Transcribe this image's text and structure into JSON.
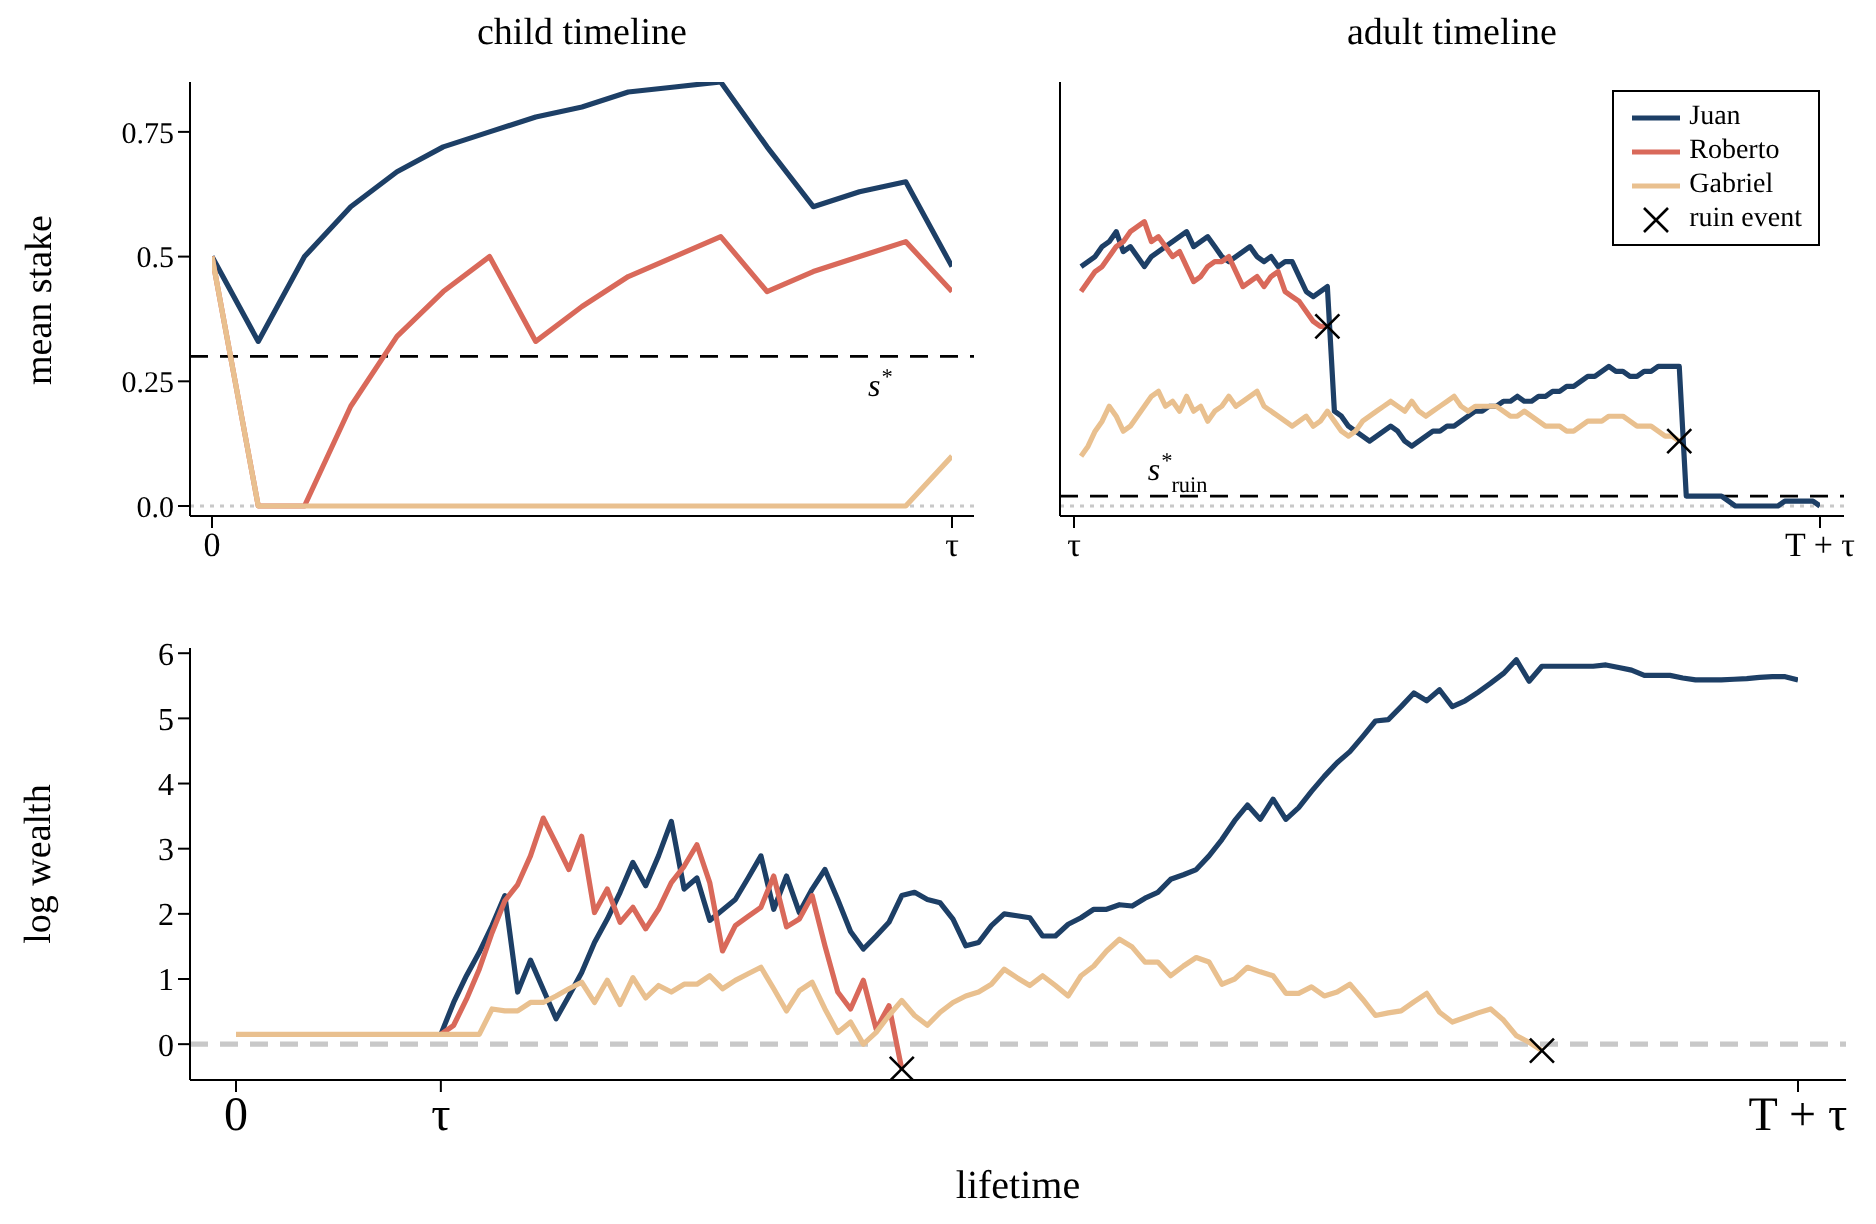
{
  "chart_data": [
    {
      "type": "line",
      "title": "child timeline",
      "ylabel": "mean stake",
      "categories": [
        "0",
        null,
        null,
        null,
        null,
        null,
        null,
        null,
        null,
        null,
        null,
        null,
        null,
        null,
        null,
        null,
        "τ"
      ],
      "series": [
        {
          "color": "#1d3f66",
          "values": [
            0.5,
            0.33,
            0.5,
            0.6,
            0.67,
            0.72,
            0.75,
            0.78,
            0.8,
            0.83,
            0.84,
            0.85,
            0.72,
            0.6,
            0.63,
            0.65,
            0.48
          ]
        },
        {
          "color": "#d9695a",
          "values": [
            0.5,
            0,
            0,
            0.2,
            0.34,
            0.43,
            0.5,
            0.33,
            0.4,
            0.46,
            0.5,
            0.54,
            0.43,
            0.47,
            0.5,
            0.53,
            0.43
          ]
        },
        {
          "color": "#e9c08f",
          "values": [
            0.5,
            0,
            0,
            0,
            0,
            0,
            0,
            0,
            0,
            0,
            0,
            0,
            0,
            0,
            0,
            0,
            0.1
          ]
        }
      ],
      "ylim": [
        -0.02,
        0.85
      ],
      "yticks": [
        {
          "value": 0,
          "label": "0.0"
        },
        0.25,
        0.5,
        0.75
      ],
      "ref_lines": [
        {
          "axis": "y",
          "value": 0.3,
          "label": "s$^{*}$",
          "color": "#000000",
          "line_style": "dashed"
        },
        {
          "axis": "y",
          "value": 0,
          "color": "#c8c8c8",
          "line_style": "dotted"
        }
      ]
    },
    {
      "type": "line",
      "title": "adult timeline",
      "legend": "top right",
      "tick_labels": "x",
      "categories": [
        "τ",
        null,
        null,
        null,
        null,
        null,
        null,
        null,
        null,
        null,
        null,
        null,
        null,
        null,
        null,
        null,
        null,
        null,
        null,
        null,
        null,
        null,
        null,
        null,
        null,
        null,
        null,
        null,
        null,
        null,
        null,
        null,
        null,
        null,
        null,
        null,
        null,
        null,
        null,
        null,
        null,
        null,
        null,
        null,
        null,
        null,
        null,
        null,
        null,
        null,
        null,
        null,
        null,
        null,
        null,
        null,
        null,
        null,
        null,
        null,
        null,
        null,
        null,
        null,
        null,
        null,
        null,
        null,
        null,
        null,
        null,
        null,
        null,
        null,
        null,
        null,
        null,
        null,
        null,
        null,
        null,
        null,
        null,
        null,
        null,
        null,
        null,
        null,
        null,
        null,
        null,
        null,
        null,
        null,
        null,
        null,
        null,
        null,
        null,
        null,
        null,
        null,
        null,
        null,
        null,
        null,
        "T + τ"
      ],
      "series": [
        {
          "name": "Juan",
          "color": "#1d3f66",
          "values": [
            null,
            0.48,
            0.49,
            0.5,
            0.52,
            0.53,
            0.55,
            0.51,
            0.52,
            0.5,
            0.48,
            0.5,
            0.51,
            0.52,
            0.53,
            0.54,
            0.55,
            0.52,
            0.53,
            0.54,
            0.52,
            0.5,
            0.49,
            0.5,
            0.51,
            0.52,
            0.5,
            0.49,
            0.5,
            0.48,
            0.49,
            0.49,
            0.46,
            0.43,
            0.42,
            0.43,
            0.44,
            0.19,
            0.18,
            0.16,
            0.15,
            0.14,
            0.13,
            0.14,
            0.15,
            0.16,
            0.15,
            0.13,
            0.12,
            0.13,
            0.14,
            0.15,
            0.15,
            0.16,
            0.16,
            0.17,
            0.18,
            0.19,
            0.19,
            0.2,
            0.2,
            0.21,
            0.21,
            0.22,
            0.21,
            0.21,
            0.22,
            0.22,
            0.23,
            0.23,
            0.24,
            0.24,
            0.25,
            0.26,
            0.26,
            0.27,
            0.28,
            0.27,
            0.27,
            0.26,
            0.26,
            0.27,
            0.27,
            0.28,
            0.28,
            0.28,
            0.28,
            0.02,
            0.02,
            0.02,
            0.02,
            0.02,
            0.02,
            0.01,
            0,
            0,
            0,
            0,
            0,
            0,
            0,
            0.01,
            0.01,
            0.01,
            0.01,
            0.01,
            0
          ]
        },
        {
          "name": "Roberto",
          "color": "#d9695a",
          "values": [
            null,
            0.43,
            0.45,
            0.47,
            0.48,
            0.5,
            0.52,
            0.53,
            0.55,
            0.56,
            0.57,
            0.53,
            0.54,
            0.52,
            0.5,
            0.51,
            0.48,
            0.45,
            0.46,
            0.48,
            0.49,
            0.49,
            0.5,
            0.47,
            0.44,
            0.45,
            0.46,
            0.44,
            0.46,
            0.47,
            0.43,
            0.42,
            0.41,
            0.39,
            0.37,
            0.36,
            0.36,
            null,
            null,
            null,
            null,
            null,
            null,
            null,
            null,
            null,
            null,
            null,
            null,
            null,
            null,
            null,
            null,
            null,
            null,
            null,
            null,
            null,
            null,
            null,
            null,
            null,
            null,
            null,
            null,
            null,
            null,
            null,
            null,
            null,
            null,
            null,
            null,
            null,
            null,
            null,
            null,
            null,
            null,
            null,
            null,
            null,
            null,
            null,
            null,
            null,
            null,
            null,
            null,
            null,
            null,
            null,
            null,
            null,
            null,
            null,
            null,
            null,
            null,
            null,
            null,
            null,
            null,
            null,
            null,
            null,
            null
          ]
        },
        {
          "name": "Gabriel",
          "color": "#e9c08f",
          "values": [
            null,
            0.1,
            0.12,
            0.15,
            0.17,
            0.2,
            0.18,
            0.15,
            0.16,
            0.18,
            0.2,
            0.22,
            0.23,
            0.2,
            0.21,
            0.19,
            0.22,
            0.19,
            0.2,
            0.17,
            0.19,
            0.2,
            0.22,
            0.2,
            0.21,
            0.22,
            0.23,
            0.2,
            0.19,
            0.18,
            0.17,
            0.16,
            0.17,
            0.18,
            0.16,
            0.17,
            0.19,
            0.17,
            0.15,
            0.14,
            0.15,
            0.17,
            0.18,
            0.19,
            0.2,
            0.21,
            0.2,
            0.19,
            0.21,
            0.19,
            0.18,
            0.19,
            0.2,
            0.21,
            0.22,
            0.2,
            0.19,
            0.2,
            0.2,
            0.2,
            0.2,
            0.19,
            0.18,
            0.18,
            0.19,
            0.18,
            0.17,
            0.16,
            0.16,
            0.16,
            0.15,
            0.15,
            0.16,
            0.17,
            0.17,
            0.17,
            0.18,
            0.18,
            0.18,
            0.17,
            0.16,
            0.16,
            0.16,
            0.15,
            0.14,
            0.14,
            0.13,
            null,
            null,
            null,
            null,
            null,
            null,
            null,
            null,
            null,
            null,
            null,
            null,
            null,
            null,
            null,
            null,
            null,
            null,
            null,
            null
          ]
        },
        {
          "name": "ruin event",
          "type": "scatter",
          "marker": "cross",
          "color": "#000000",
          "values": [
            null,
            null,
            null,
            null,
            null,
            null,
            null,
            null,
            null,
            null,
            null,
            null,
            null,
            null,
            null,
            null,
            null,
            null,
            null,
            null,
            null,
            null,
            null,
            null,
            null,
            null,
            null,
            null,
            null,
            null,
            null,
            null,
            null,
            null,
            null,
            null,
            0.36,
            null,
            null,
            null,
            null,
            null,
            null,
            null,
            null,
            null,
            null,
            null,
            null,
            null,
            null,
            null,
            null,
            null,
            null,
            null,
            null,
            null,
            null,
            null,
            null,
            null,
            null,
            null,
            null,
            null,
            null,
            null,
            null,
            null,
            null,
            null,
            null,
            null,
            null,
            null,
            null,
            null,
            null,
            null,
            null,
            null,
            null,
            null,
            null,
            null,
            0.13,
            null,
            null,
            null,
            null,
            null,
            null,
            null,
            null,
            null,
            null,
            null,
            null,
            null,
            null,
            null,
            null,
            null,
            null,
            null,
            null
          ]
        }
      ],
      "ylim": [
        -0.02,
        0.85
      ],
      "ref_lines": [
        {
          "axis": "y",
          "value": 0.02,
          "label": "s$^{*}$$_{ruin}$",
          "color": "#000000",
          "line_style": "dashed"
        },
        {
          "axis": "y",
          "value": 0,
          "color": "#c8c8c8",
          "line_style": "dotted"
        }
      ]
    },
    {
      "type": "line",
      "xlabel": "lifetime",
      "ylabel": "log wealth",
      "categories": [
        "0",
        null,
        null,
        null,
        null,
        null,
        null,
        null,
        null,
        null,
        null,
        null,
        null,
        null,
        null,
        null,
        "τ",
        null,
        null,
        null,
        null,
        null,
        null,
        null,
        null,
        null,
        null,
        null,
        null,
        null,
        null,
        null,
        null,
        null,
        null,
        null,
        null,
        null,
        null,
        null,
        null,
        null,
        null,
        null,
        null,
        null,
        null,
        null,
        null,
        null,
        null,
        null,
        null,
        null,
        null,
        null,
        null,
        null,
        null,
        null,
        null,
        null,
        null,
        null,
        null,
        null,
        null,
        null,
        null,
        null,
        null,
        null,
        null,
        null,
        null,
        null,
        null,
        null,
        null,
        null,
        null,
        null,
        null,
        null,
        null,
        null,
        null,
        null,
        null,
        null,
        null,
        null,
        null,
        null,
        null,
        null,
        null,
        null,
        null,
        null,
        null,
        null,
        null,
        null,
        null,
        null,
        null,
        null,
        null,
        null,
        null,
        null,
        null,
        null,
        null,
        null,
        null,
        null,
        null,
        null,
        null,
        null,
        "T + τ"
      ],
      "series": [
        {
          "color": "#1d3f66",
          "values": [
            null,
            null,
            null,
            null,
            null,
            null,
            null,
            null,
            null,
            null,
            null,
            null,
            null,
            null,
            null,
            null,
            0.15,
            0.64,
            1.05,
            1.41,
            1.82,
            2.28,
            0.8,
            1.29,
            0.84,
            0.39,
            0.74,
            1.1,
            1.56,
            1.92,
            2.33,
            2.79,
            2.43,
            2.89,
            3.42,
            2.38,
            2.55,
            1.9,
            2.06,
            2.22,
            2.55,
            2.89,
            2.07,
            2.58,
            2.02,
            2.38,
            2.68,
            2.22,
            1.73,
            1.46,
            1.66,
            1.87,
            2.28,
            2.33,
            2.22,
            2.17,
            1.92,
            1.51,
            1.56,
            1.82,
            2,
            1.97,
            1.94,
            1.66,
            1.66,
            1.84,
            1.94,
            2.07,
            2.07,
            2.14,
            2.12,
            2.24,
            2.33,
            2.53,
            2.6,
            2.68,
            2.89,
            3.14,
            3.43,
            3.67,
            3.45,
            3.76,
            3.45,
            3.63,
            3.88,
            4.11,
            4.32,
            4.49,
            4.72,
            4.96,
            4.98,
            5.18,
            5.39,
            5.27,
            5.44,
            5.18,
            5.27,
            5.4,
            5.54,
            5.69,
            5.9,
            5.57,
            5.8,
            5.8,
            5.8,
            5.8,
            5.8,
            5.82,
            5.78,
            5.74,
            5.66,
            5.66,
            5.66,
            5.62,
            5.59,
            5.59,
            5.59,
            5.6,
            5.61,
            5.63,
            5.64,
            5.64,
            5.59
          ]
        },
        {
          "color": "#d9695a",
          "values": [
            null,
            null,
            null,
            null,
            null,
            null,
            null,
            null,
            null,
            null,
            null,
            null,
            null,
            null,
            null,
            null,
            0.15,
            0.29,
            0.69,
            1.15,
            1.71,
            2.2,
            2.45,
            2.89,
            3.47,
            3.08,
            2.68,
            3.19,
            2.02,
            2.38,
            1.87,
            2.1,
            1.77,
            2.07,
            2.48,
            2.73,
            3.06,
            2.48,
            1.43,
            1.82,
            1.96,
            2.1,
            2.58,
            1.8,
            1.92,
            2.28,
            1.51,
            0.8,
            0.54,
            0.98,
            0.23,
            0.59,
            -0.38,
            null,
            null,
            null,
            null,
            null,
            null,
            null,
            null,
            null,
            null,
            null,
            null,
            null,
            null,
            null,
            null,
            null,
            null,
            null,
            null,
            null,
            null,
            null,
            null,
            null,
            null,
            null,
            null,
            null,
            null,
            null,
            null,
            null,
            null,
            null,
            null,
            null,
            null,
            null,
            null,
            null,
            null,
            null,
            null,
            null,
            null,
            null,
            null,
            null,
            null,
            null,
            null,
            null,
            null,
            null,
            null,
            null,
            null,
            null,
            null,
            null,
            null,
            null,
            null,
            null,
            null,
            null,
            null,
            null,
            null
          ]
        },
        {
          "color": "#e9c08f",
          "values": [
            0.15,
            0.15,
            0.15,
            0.15,
            0.15,
            0.15,
            0.15,
            0.15,
            0.15,
            0.15,
            0.15,
            0.15,
            0.15,
            0.15,
            0.15,
            0.15,
            0.15,
            0.15,
            0.15,
            0.15,
            0.54,
            0.51,
            0.51,
            0.64,
            0.64,
            0.74,
            0.85,
            0.95,
            0.64,
            0.98,
            0.61,
            1.02,
            0.71,
            0.9,
            0.8,
            0.92,
            0.92,
            1.05,
            0.85,
            0.98,
            1.08,
            1.18,
            0.85,
            0.51,
            0.82,
            0.95,
            0.54,
            0.18,
            0.34,
            0,
            0.18,
            0.44,
            0.67,
            0.44,
            0.29,
            0.49,
            0.64,
            0.74,
            0.8,
            0.92,
            1.15,
            1.02,
            0.9,
            1.05,
            0.9,
            0.74,
            1.05,
            1.2,
            1.43,
            1.61,
            1.49,
            1.26,
            1.26,
            1.05,
            1.2,
            1.33,
            1.26,
            0.92,
            1,
            1.18,
            1.11,
            1.05,
            0.78,
            0.78,
            0.88,
            0.74,
            0.8,
            0.92,
            0.69,
            0.44,
            0.48,
            0.51,
            0.65,
            0.78,
            0.49,
            0.34,
            0.41,
            0.48,
            0.54,
            0.37,
            0.13,
            0.03,
            -0.1,
            null,
            null,
            null,
            null,
            null,
            null,
            null,
            null,
            null,
            null,
            null,
            null,
            null,
            null,
            null,
            null,
            null,
            null,
            null,
            null
          ]
        },
        {
          "type": "scatter",
          "marker": "cross",
          "color": "#000000",
          "values": [
            null,
            null,
            null,
            null,
            null,
            null,
            null,
            null,
            null,
            null,
            null,
            null,
            null,
            null,
            null,
            null,
            null,
            null,
            null,
            null,
            null,
            null,
            null,
            null,
            null,
            null,
            null,
            null,
            null,
            null,
            null,
            null,
            null,
            null,
            null,
            null,
            null,
            null,
            null,
            null,
            null,
            null,
            null,
            null,
            null,
            null,
            null,
            null,
            null,
            null,
            null,
            null,
            -0.38,
            null,
            null,
            null,
            null,
            null,
            null,
            null,
            null,
            null,
            null,
            null,
            null,
            null,
            null,
            null,
            null,
            null,
            null,
            null,
            null,
            null,
            null,
            null,
            null,
            null,
            null,
            null,
            null,
            null,
            null,
            null,
            null,
            null,
            null,
            null,
            null,
            null,
            null,
            null,
            null,
            null,
            null,
            null,
            null,
            null,
            null,
            null,
            null,
            null,
            -0.1,
            null,
            null,
            null,
            null,
            null,
            null,
            null,
            null,
            null,
            null,
            null,
            null,
            null,
            null,
            null,
            null,
            null,
            null,
            null,
            null
          ]
        }
      ],
      "ylim": [
        -0.55,
        6.08
      ],
      "yticks": [
        0,
        1,
        2,
        3,
        4,
        5,
        6
      ],
      "ref_lines": [
        {
          "axis": "y",
          "value": 0,
          "color": "#c8c8c8",
          "line_style": "dashed"
        }
      ]
    }
  ]
}
